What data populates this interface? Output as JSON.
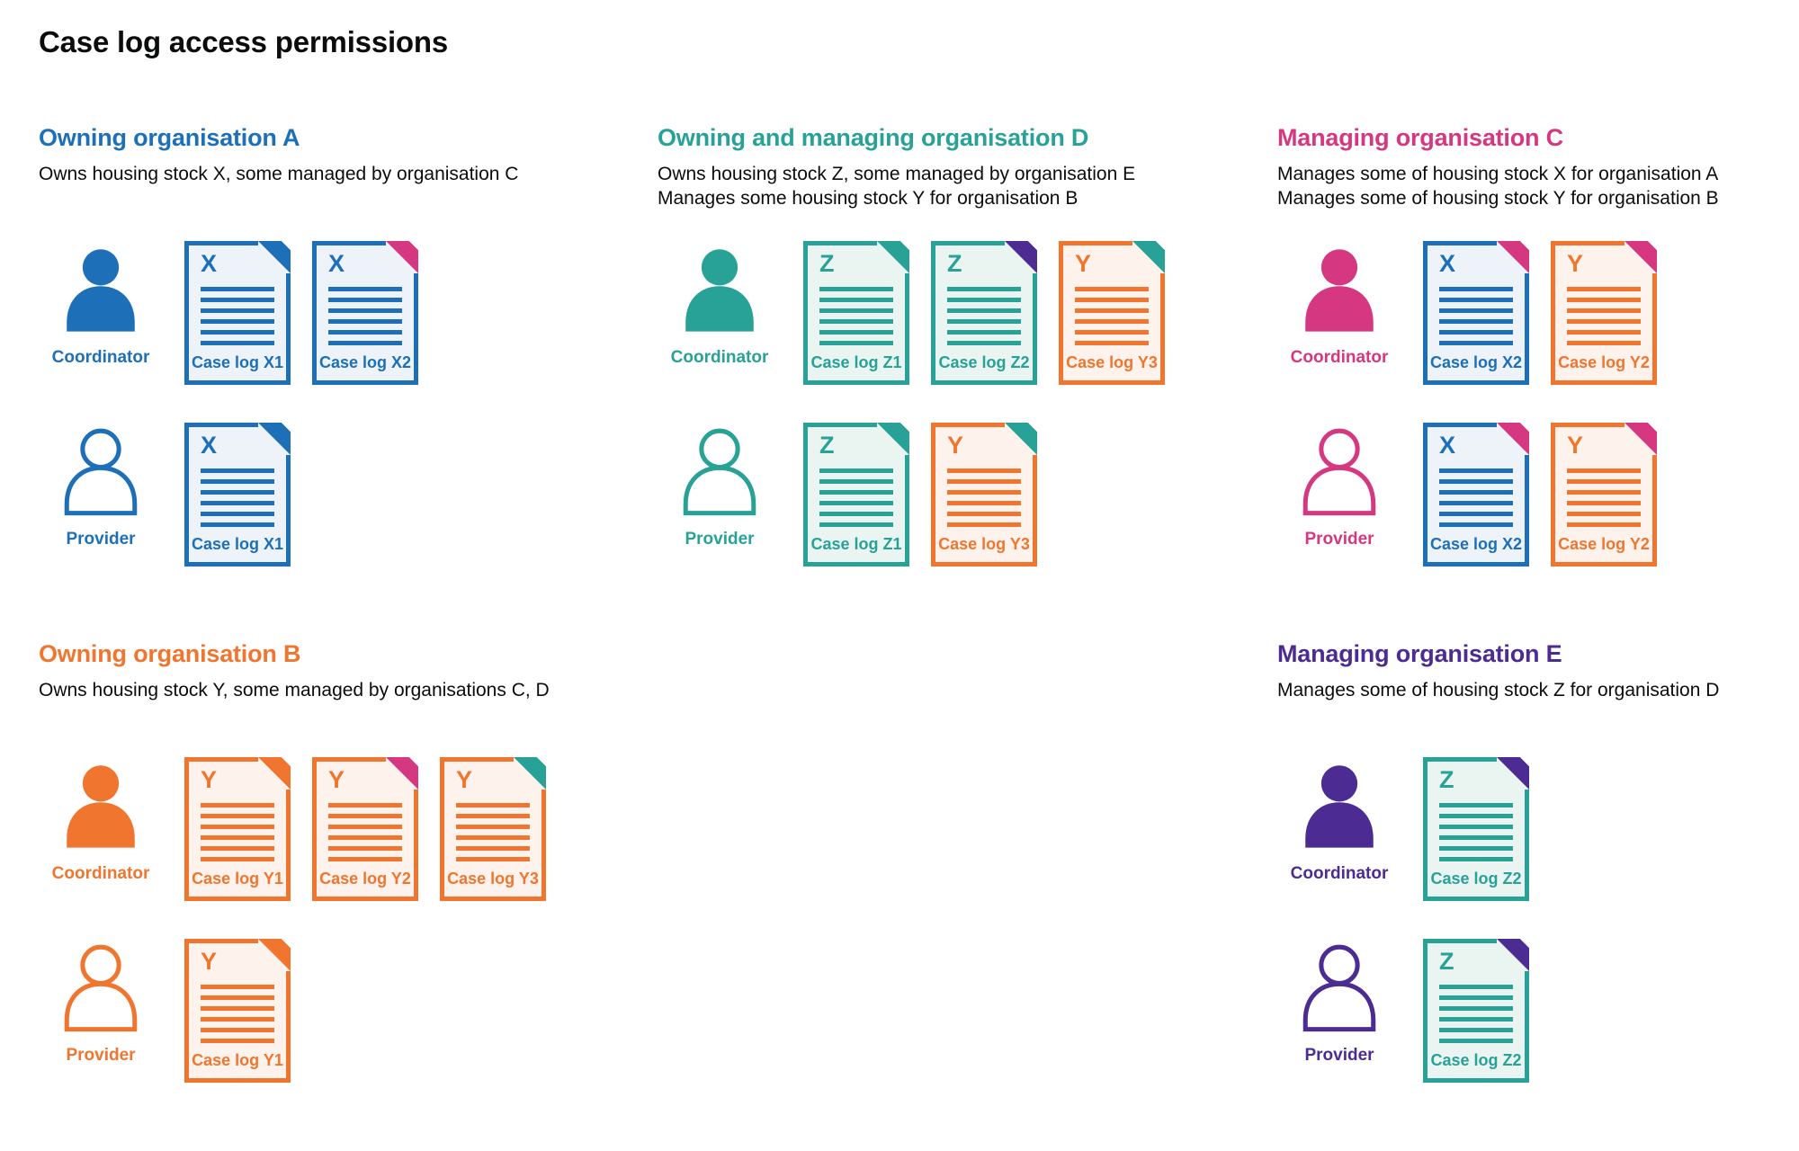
{
  "page_title": "Case log access permissions",
  "colors": {
    "blue": {
      "main": "#1d70b8",
      "tint": "#eef3f9"
    },
    "teal": {
      "main": "#28a197",
      "tint": "#eaf5f2"
    },
    "orange": {
      "main": "#f0762f",
      "tint": "#fdf3ec"
    },
    "pink": {
      "main": "#d53880",
      "tint": "#fbeef4"
    },
    "purple": {
      "main": "#4c2c92",
      "tint": "#efecf6"
    }
  },
  "sections": [
    {
      "id": "org-a",
      "color": "blue",
      "heading": "Owning organisation A",
      "description_lines": [
        "Owns housing stock X, some managed by organisation C"
      ],
      "rows": [
        {
          "role": "Coordinator",
          "role_key": "coordinator",
          "person_style": "filled",
          "docs": [
            {
              "letter": "X",
              "label": "Case log X1",
              "doc_color": "blue",
              "fold_color": "blue"
            },
            {
              "letter": "X",
              "label": "Case log X2",
              "doc_color": "blue",
              "fold_color": "pink"
            }
          ]
        },
        {
          "role": "Provider",
          "role_key": "provider",
          "person_style": "outline",
          "docs": [
            {
              "letter": "X",
              "label": "Case log X1",
              "doc_color": "blue",
              "fold_color": "blue"
            }
          ]
        }
      ]
    },
    {
      "id": "org-d",
      "color": "teal",
      "heading": "Owning and managing organisation D",
      "description_lines": [
        "Owns housing stock Z, some managed by organisation E",
        "Manages some housing stock Y for organisation B"
      ],
      "rows": [
        {
          "role": "Coordinator",
          "role_key": "coordinator",
          "person_style": "filled",
          "docs": [
            {
              "letter": "Z",
              "label": "Case log Z1",
              "doc_color": "teal",
              "fold_color": "teal"
            },
            {
              "letter": "Z",
              "label": "Case log Z2",
              "doc_color": "teal",
              "fold_color": "purple"
            },
            {
              "letter": "Y",
              "label": "Case log Y3",
              "doc_color": "orange",
              "fold_color": "teal"
            }
          ]
        },
        {
          "role": "Provider",
          "role_key": "provider",
          "person_style": "outline",
          "docs": [
            {
              "letter": "Z",
              "label": "Case log Z1",
              "doc_color": "teal",
              "fold_color": "teal"
            },
            {
              "letter": "Y",
              "label": "Case log Y3",
              "doc_color": "orange",
              "fold_color": "teal"
            }
          ]
        }
      ]
    },
    {
      "id": "org-c",
      "color": "pink",
      "heading": "Managing organisation C",
      "description_lines": [
        "Manages some of housing stock X for organisation A",
        "Manages some of housing stock Y for organisation B"
      ],
      "rows": [
        {
          "role": "Coordinator",
          "role_key": "coordinator",
          "person_style": "filled",
          "docs": [
            {
              "letter": "X",
              "label": "Case log X2",
              "doc_color": "blue",
              "fold_color": "pink"
            },
            {
              "letter": "Y",
              "label": "Case log Y2",
              "doc_color": "orange",
              "fold_color": "pink"
            }
          ]
        },
        {
          "role": "Provider",
          "role_key": "provider",
          "person_style": "outline",
          "docs": [
            {
              "letter": "X",
              "label": "Case log X2",
              "doc_color": "blue",
              "fold_color": "pink"
            },
            {
              "letter": "Y",
              "label": "Case log Y2",
              "doc_color": "orange",
              "fold_color": "pink"
            }
          ]
        }
      ]
    },
    {
      "id": "org-b",
      "color": "orange",
      "heading": "Owning organisation B",
      "description_lines": [
        "Owns housing stock Y, some managed by organisations C, D"
      ],
      "rows": [
        {
          "role": "Coordinator",
          "role_key": "coordinator",
          "person_style": "filled",
          "docs": [
            {
              "letter": "Y",
              "label": "Case log Y1",
              "doc_color": "orange",
              "fold_color": "orange"
            },
            {
              "letter": "Y",
              "label": "Case log Y2",
              "doc_color": "orange",
              "fold_color": "pink"
            },
            {
              "letter": "Y",
              "label": "Case log Y3",
              "doc_color": "orange",
              "fold_color": "teal"
            }
          ]
        },
        {
          "role": "Provider",
          "role_key": "provider",
          "person_style": "outline",
          "docs": [
            {
              "letter": "Y",
              "label": "Case log Y1",
              "doc_color": "orange",
              "fold_color": "orange"
            }
          ]
        }
      ]
    },
    {
      "id": "org-e",
      "color": "purple",
      "heading": "Managing organisation E",
      "description_lines": [
        "Manages some of housing stock Z for organisation D"
      ],
      "rows": [
        {
          "role": "Coordinator",
          "role_key": "coordinator",
          "person_style": "filled",
          "docs": [
            {
              "letter": "Z",
              "label": "Case log Z2",
              "doc_color": "teal",
              "fold_color": "purple"
            }
          ]
        },
        {
          "role": "Provider",
          "role_key": "provider",
          "person_style": "outline",
          "docs": [
            {
              "letter": "Z",
              "label": "Case log Z2",
              "doc_color": "teal",
              "fold_color": "purple"
            }
          ]
        }
      ]
    }
  ]
}
